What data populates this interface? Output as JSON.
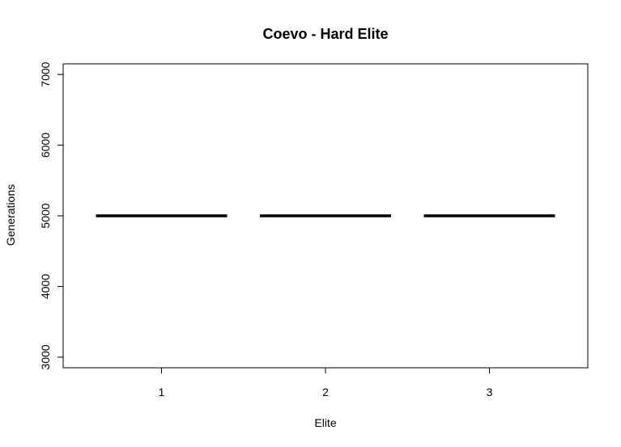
{
  "chart_data": {
    "type": "boxplot",
    "title": "Coevo - Hard Elite",
    "xlabel": "Elite",
    "ylabel": "Generations",
    "categories": [
      "1",
      "2",
      "3"
    ],
    "values": [
      5000,
      5000,
      5000
    ],
    "ylim": [
      2850,
      7150
    ],
    "yticks": [
      3000,
      4000,
      5000,
      6000,
      7000
    ],
    "ytick_labels": [
      "3000",
      "4000",
      "5000",
      "6000",
      "7000"
    ],
    "grid": false,
    "legend": "none",
    "colors": {
      "line": "#000000",
      "frame": "#000000",
      "background": "#ffffff"
    }
  }
}
